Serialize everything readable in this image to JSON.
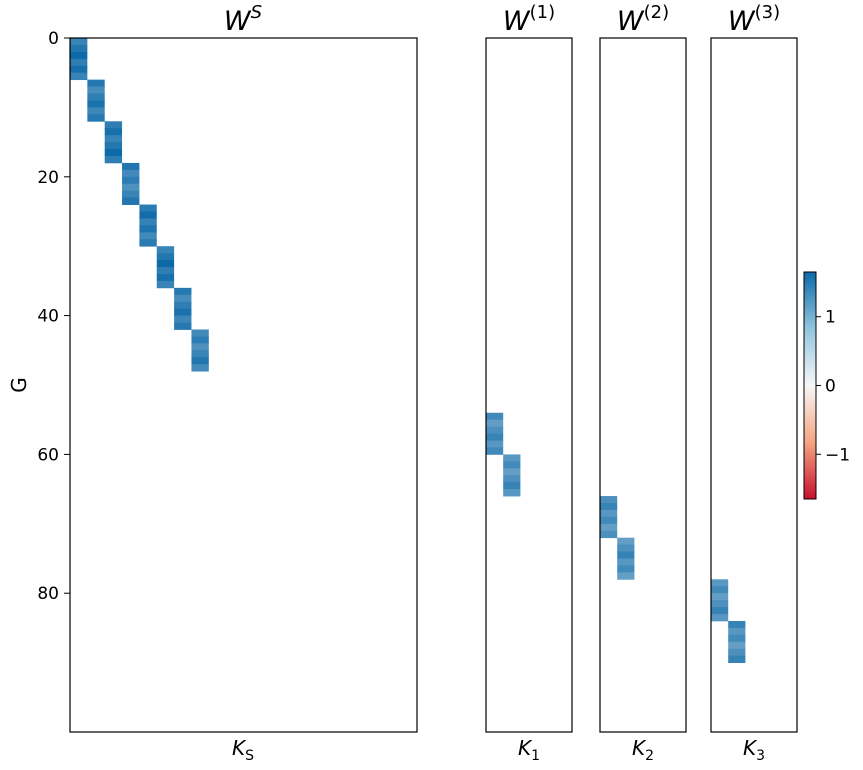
{
  "chart_data": {
    "type": "heatmap",
    "ylabel": "G",
    "n_rows": 100,
    "yticks": [
      0,
      20,
      40,
      60,
      80
    ],
    "colormap": "RdBu",
    "color_low": "#c8102e",
    "color_mid": "#f7f7f7",
    "color_high": "#0d6aa8",
    "colorbar": {
      "vmin": -1.65,
      "vmax": 1.65,
      "ticks": [
        1,
        0,
        -1
      ],
      "tick_labels": [
        "1",
        "0",
        "−1"
      ]
    },
    "panels": [
      {
        "id": "shared",
        "title": "W",
        "title_sup": "S",
        "title_sup_italic": true,
        "xlabel": "K",
        "xlabel_sub": "S",
        "n_cols": 20,
        "blocks": [
          {
            "col": 0,
            "row_start": 0,
            "row_end": 5,
            "value": 1.5
          },
          {
            "col": 1,
            "row_start": 6,
            "row_end": 11,
            "value": 1.4
          },
          {
            "col": 2,
            "row_start": 12,
            "row_end": 17,
            "value": 1.5
          },
          {
            "col": 3,
            "row_start": 18,
            "row_end": 23,
            "value": 1.35
          },
          {
            "col": 4,
            "row_start": 24,
            "row_end": 29,
            "value": 1.45
          },
          {
            "col": 5,
            "row_start": 30,
            "row_end": 35,
            "value": 1.5
          },
          {
            "col": 6,
            "row_start": 36,
            "row_end": 41,
            "value": 1.4
          },
          {
            "col": 7,
            "row_start": 42,
            "row_end": 47,
            "value": 1.35
          }
        ]
      },
      {
        "id": "view1",
        "title": "W",
        "title_sup": "(1)",
        "title_sup_italic": false,
        "xlabel": "K",
        "xlabel_sub": "1",
        "n_cols": 5,
        "blocks": [
          {
            "col": 0,
            "row_start": 54,
            "row_end": 59,
            "value": 1.2
          },
          {
            "col": 1,
            "row_start": 60,
            "row_end": 65,
            "value": 1.2
          }
        ]
      },
      {
        "id": "view2",
        "title": "W",
        "title_sup": "(2)",
        "title_sup_italic": false,
        "xlabel": "K",
        "xlabel_sub": "2",
        "n_cols": 5,
        "blocks": [
          {
            "col": 0,
            "row_start": 66,
            "row_end": 71,
            "value": 1.2
          },
          {
            "col": 1,
            "row_start": 72,
            "row_end": 77,
            "value": 1.2
          }
        ]
      },
      {
        "id": "view3",
        "title": "W",
        "title_sup": "(3)",
        "title_sup_italic": false,
        "xlabel": "K",
        "xlabel_sub": "3",
        "n_cols": 5,
        "blocks": [
          {
            "col": 0,
            "row_start": 78,
            "row_end": 83,
            "value": 1.2
          },
          {
            "col": 1,
            "row_start": 84,
            "row_end": 89,
            "value": 1.2
          }
        ]
      }
    ]
  }
}
